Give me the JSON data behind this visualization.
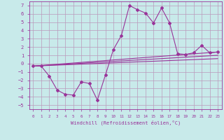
{
  "xlabel": "Windchill (Refroidissement éolien,°C)",
  "bg_color": "#c8eaea",
  "line_color": "#993399",
  "grid_color": "#bb99bb",
  "xlim": [
    -0.5,
    23.5
  ],
  "ylim": [
    -5.5,
    7.5
  ],
  "xticks": [
    0,
    1,
    2,
    3,
    4,
    5,
    6,
    7,
    8,
    9,
    10,
    11,
    12,
    13,
    14,
    15,
    16,
    17,
    18,
    19,
    20,
    21,
    22,
    23
  ],
  "yticks": [
    -5,
    -4,
    -3,
    -2,
    -1,
    0,
    1,
    2,
    3,
    4,
    5,
    6,
    7
  ],
  "series1_x": [
    0,
    1,
    2,
    3,
    4,
    5,
    6,
    7,
    8,
    9,
    10,
    11,
    12,
    13,
    14,
    15,
    16,
    17,
    18,
    19,
    20,
    21,
    22,
    23
  ],
  "series1_y": [
    -0.3,
    -0.3,
    -1.5,
    -3.2,
    -3.7,
    -3.8,
    -2.2,
    -2.4,
    -4.4,
    -1.4,
    1.7,
    3.4,
    7.0,
    6.5,
    6.1,
    4.9,
    6.7,
    4.9,
    1.2,
    1.1,
    1.3,
    2.2,
    1.3,
    1.4
  ],
  "line1_x": [
    0,
    23
  ],
  "line1_y": [
    -0.3,
    1.4
  ],
  "line2_x": [
    0,
    23
  ],
  "line2_y": [
    -0.3,
    1.0
  ],
  "line3_x": [
    0,
    23
  ],
  "line3_y": [
    -0.3,
    0.6
  ]
}
